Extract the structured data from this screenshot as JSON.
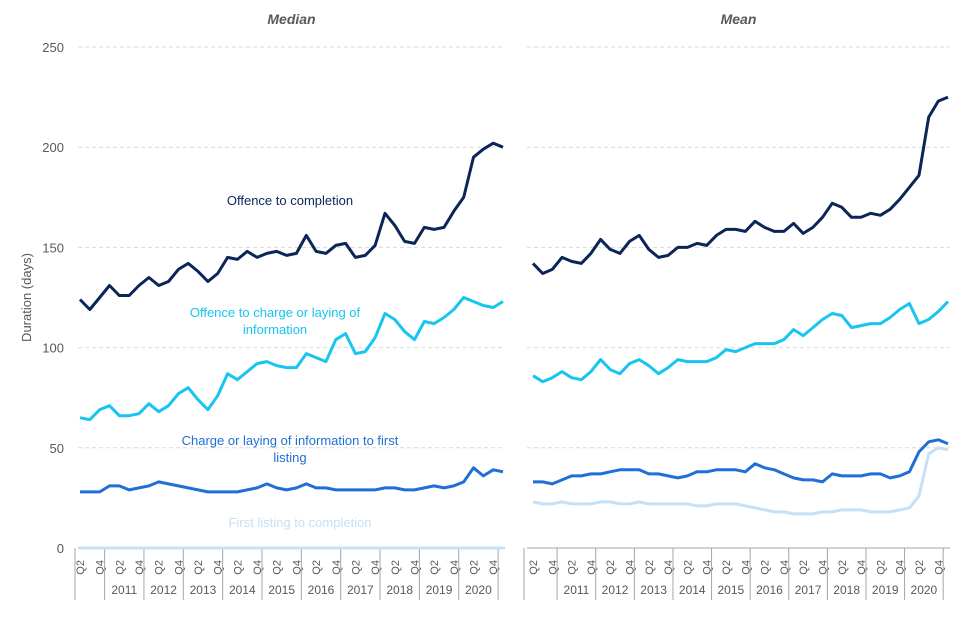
{
  "chart_data": [
    {
      "type": "line",
      "title": "Median",
      "y_label": "Duration (days)",
      "categories": [
        "Q2",
        null,
        "Q4",
        null,
        "Q2",
        null,
        "Q4",
        null,
        "Q2",
        null,
        "Q4",
        null,
        "Q2",
        null,
        "Q4",
        null,
        "Q2",
        null,
        "Q4",
        null,
        "Q2",
        null,
        "Q4",
        null,
        "Q2",
        null,
        "Q4",
        null,
        "Q2",
        null,
        "Q4",
        null,
        "Q2",
        null,
        "Q4",
        null,
        "Q2",
        null,
        "Q4",
        null,
        "Q2",
        null,
        "Q4",
        null
      ],
      "years": [
        "2011",
        "2012",
        "2013",
        "2014",
        "2015",
        "2016",
        "2017",
        "2018",
        "2019",
        "2020"
      ],
      "ylim": [
        0,
        250
      ],
      "yticks": [
        0,
        50,
        100,
        150,
        200,
        250
      ],
      "grid": true,
      "series": [
        {
          "name": "Offence to completion",
          "color": "#0b2559",
          "values": [
            124,
            119,
            125,
            131,
            126,
            126,
            131,
            135,
            131,
            133,
            139,
            142,
            138,
            133,
            137,
            145,
            144,
            148,
            145,
            147,
            148,
            146,
            147,
            156,
            148,
            147,
            151,
            152,
            145,
            146,
            151,
            167,
            161,
            153,
            152,
            160,
            159,
            160,
            168,
            175,
            195,
            199,
            202,
            200
          ]
        },
        {
          "name": "Offence to charge or laying of information",
          "color": "#17c5f0",
          "values": [
            65,
            64,
            69,
            71,
            66,
            66,
            67,
            72,
            68,
            71,
            77,
            80,
            74,
            69,
            76,
            87,
            84,
            88,
            92,
            93,
            91,
            90,
            90,
            97,
            95,
            93,
            104,
            107,
            97,
            98,
            105,
            117,
            114,
            108,
            104,
            113,
            112,
            115,
            119,
            125,
            123,
            121,
            120,
            123
          ]
        },
        {
          "name": "Charge or laying of information to first listing",
          "color": "#1f6fd6",
          "values": [
            28,
            28,
            28,
            31,
            31,
            29,
            30,
            31,
            33,
            32,
            31,
            30,
            29,
            28,
            28,
            28,
            28,
            29,
            30,
            32,
            30,
            29,
            30,
            32,
            30,
            30,
            29,
            29,
            29,
            29,
            29,
            30,
            30,
            29,
            29,
            30,
            31,
            30,
            31,
            33,
            40,
            36,
            39,
            38
          ]
        },
        {
          "name": "First listing to completion",
          "color": "#c5e0f7",
          "values": [
            0,
            0,
            0,
            0,
            0,
            0,
            0,
            0,
            0,
            0,
            0,
            0,
            0,
            0,
            0,
            0,
            0,
            0,
            0,
            0,
            0,
            0,
            0,
            0,
            0,
            0,
            0,
            0,
            0,
            0,
            0,
            0,
            0,
            0,
            0,
            0,
            0,
            0,
            0,
            0,
            0,
            0,
            0,
            0
          ]
        }
      ]
    },
    {
      "type": "line",
      "title": "Mean",
      "categories": [
        "Q2",
        null,
        "Q4",
        null,
        "Q2",
        null,
        "Q4",
        null,
        "Q2",
        null,
        "Q4",
        null,
        "Q2",
        null,
        "Q4",
        null,
        "Q2",
        null,
        "Q4",
        null,
        "Q2",
        null,
        "Q4",
        null,
        "Q2",
        null,
        "Q4",
        null,
        "Q2",
        null,
        "Q4",
        null,
        "Q2",
        null,
        "Q4",
        null,
        "Q2",
        null,
        "Q4",
        null,
        "Q2",
        null,
        "Q4",
        null
      ],
      "years": [
        "2011",
        "2012",
        "2013",
        "2014",
        "2015",
        "2016",
        "2017",
        "2018",
        "2019",
        "2020"
      ],
      "ylim": [
        0,
        250
      ],
      "yticks": [
        0,
        50,
        100,
        150,
        200,
        250
      ],
      "grid": true,
      "series": [
        {
          "color": "#0b2559",
          "values": [
            142,
            137,
            139,
            145,
            143,
            142,
            147,
            154,
            149,
            147,
            153,
            156,
            149,
            145,
            146,
            150,
            150,
            152,
            151,
            156,
            159,
            159,
            158,
            163,
            160,
            158,
            158,
            162,
            157,
            160,
            165,
            172,
            170,
            165,
            165,
            167,
            166,
            169,
            174,
            180,
            186,
            215,
            223,
            225
          ]
        },
        {
          "color": "#17c5f0",
          "values": [
            86,
            83,
            85,
            88,
            85,
            84,
            88,
            94,
            89,
            87,
            92,
            94,
            91,
            87,
            90,
            94,
            93,
            93,
            93,
            95,
            99,
            98,
            100,
            102,
            102,
            102,
            104,
            109,
            106,
            110,
            114,
            117,
            116,
            110,
            111,
            112,
            112,
            115,
            119,
            122,
            112,
            114,
            118,
            123
          ]
        },
        {
          "color": "#1f6fd6",
          "values": [
            33,
            33,
            32,
            34,
            36,
            36,
            37,
            37,
            38,
            39,
            39,
            39,
            37,
            37,
            36,
            35,
            36,
            38,
            38,
            39,
            39,
            39,
            38,
            42,
            40,
            39,
            37,
            35,
            34,
            34,
            33,
            37,
            36,
            36,
            36,
            37,
            37,
            35,
            36,
            38,
            48,
            53,
            54,
            52
          ]
        },
        {
          "color": "#c5e0f7",
          "values": [
            23,
            22,
            22,
            23,
            22,
            22,
            22,
            23,
            23,
            22,
            22,
            23,
            22,
            22,
            22,
            22,
            22,
            21,
            21,
            22,
            22,
            22,
            21,
            20,
            19,
            18,
            18,
            17,
            17,
            17,
            18,
            18,
            19,
            19,
            19,
            18,
            18,
            18,
            19,
            20,
            26,
            47,
            50,
            49
          ]
        }
      ]
    }
  ]
}
